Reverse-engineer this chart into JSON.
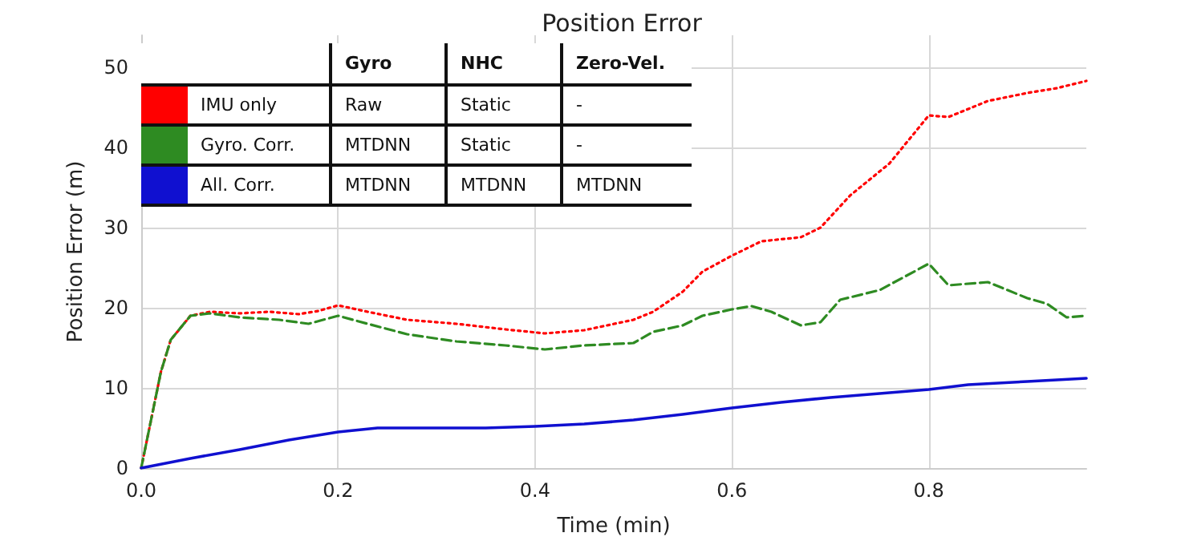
{
  "chart_data": {
    "type": "line",
    "title": "Position Error",
    "xlabel": "Time (min)",
    "ylabel": "Position Error (m)",
    "xlim": [
      0,
      0.96
    ],
    "ylim": [
      0,
      54
    ],
    "xticks": [
      {
        "value": 0,
        "label": "0.0"
      },
      0.2,
      0.4,
      0.6,
      0.8
    ],
    "yticks": [
      0,
      10,
      20,
      30,
      40,
      50
    ],
    "grid": true,
    "legend": "top left",
    "annotations": [
      "Gyro",
      "NHC",
      "Zero-Vel.",
      "Raw",
      "Static",
      "-",
      "MTDNN",
      "Static",
      "-",
      "MTDNN",
      "MTDNN",
      "MTDNN"
    ],
    "series": [
      {
        "name": "IMU only",
        "color": "#ff0000",
        "line_style": "dotted",
        "x": [
          0,
          0.01,
          0.02,
          0.03,
          0.05,
          0.07,
          0.1,
          0.13,
          0.16,
          0.18,
          0.2,
          0.23,
          0.27,
          0.32,
          0.37,
          0.41,
          0.45,
          0.5,
          0.52,
          0.55,
          0.57,
          0.6,
          0.63,
          0.67,
          0.69,
          0.72,
          0.76,
          0.8,
          0.82,
          0.86,
          0.9,
          0.93,
          0.96
        ],
        "values": [
          0,
          6,
          12,
          16,
          19,
          19.5,
          19.3,
          19.5,
          19.2,
          19.6,
          20.3,
          19.5,
          18.5,
          18,
          17.3,
          16.8,
          17.2,
          18.5,
          19.5,
          22,
          24.5,
          26.5,
          28.3,
          28.8,
          30,
          34,
          38,
          44,
          43.8,
          45.8,
          46.8,
          47.4,
          48.3
        ]
      },
      {
        "name": "Gyro. Corr.",
        "color": "#2e8b22",
        "line_style": "dashed",
        "x": [
          0,
          0.01,
          0.02,
          0.03,
          0.05,
          0.07,
          0.1,
          0.14,
          0.17,
          0.2,
          0.23,
          0.27,
          0.32,
          0.37,
          0.41,
          0.45,
          0.5,
          0.52,
          0.55,
          0.57,
          0.6,
          0.62,
          0.64,
          0.67,
          0.69,
          0.71,
          0.75,
          0.8,
          0.82,
          0.86,
          0.9,
          0.92,
          0.94,
          0.96
        ],
        "values": [
          0,
          6,
          12,
          16,
          19,
          19.3,
          18.8,
          18.5,
          18,
          19,
          18,
          16.7,
          15.8,
          15.3,
          14.8,
          15.3,
          15.6,
          17,
          17.8,
          19,
          19.8,
          20.2,
          19.5,
          17.8,
          18.2,
          21,
          22.2,
          25.5,
          22.8,
          23.2,
          21.2,
          20.5,
          18.8,
          19
        ]
      },
      {
        "name": "All. Corr.",
        "color": "#1010d0",
        "line_style": "solid",
        "x": [
          0,
          0.05,
          0.1,
          0.15,
          0.2,
          0.24,
          0.3,
          0.35,
          0.4,
          0.45,
          0.5,
          0.55,
          0.6,
          0.65,
          0.7,
          0.75,
          0.8,
          0.84,
          0.9,
          0.96
        ],
        "values": [
          0,
          1.2,
          2.3,
          3.5,
          4.5,
          5,
          5,
          5,
          5.2,
          5.5,
          6,
          6.7,
          7.5,
          8.2,
          8.8,
          9.3,
          9.8,
          10.4,
          10.8,
          11.2
        ]
      }
    ]
  }
}
